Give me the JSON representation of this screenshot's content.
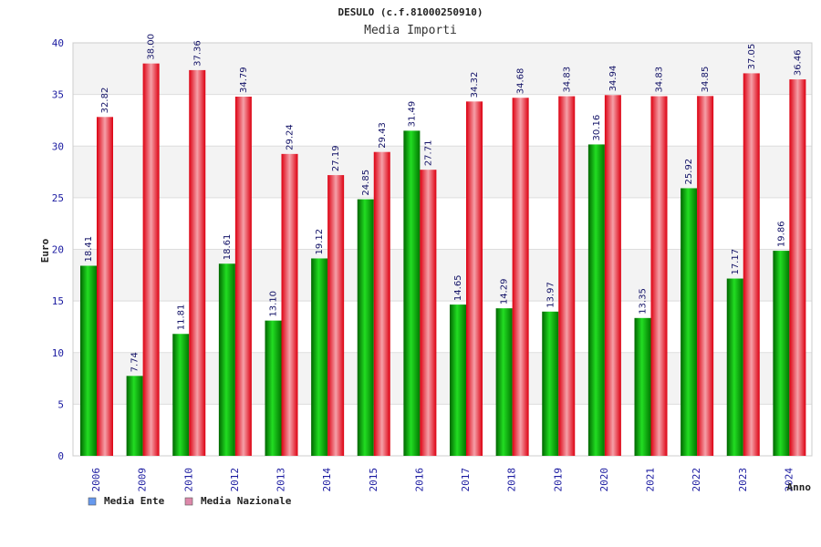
{
  "chart_data": {
    "type": "bar",
    "title": "DESULO (c.f.81000250910)",
    "subtitle": "Media Importi",
    "xlabel": "Anno",
    "ylabel": "Euro",
    "ylim": [
      0,
      40
    ],
    "yticks": [
      "0",
      "5",
      "10",
      "15",
      "20",
      "25",
      "30",
      "35",
      "40"
    ],
    "grid": true,
    "legend_position": "bottom-left",
    "categories": [
      "2006",
      "2009",
      "2010",
      "2012",
      "2013",
      "2014",
      "2015",
      "2016",
      "2017",
      "2018",
      "2019",
      "2020",
      "2021",
      "2022",
      "2023",
      "2024"
    ],
    "series": [
      {
        "name": "Media Ente",
        "legend_color": "#6699ee",
        "bar_color": "#00bb00",
        "values": [
          18.41,
          7.74,
          11.81,
          18.61,
          13.1,
          19.12,
          24.85,
          31.49,
          14.65,
          14.29,
          13.97,
          30.16,
          13.35,
          25.92,
          17.17,
          19.86
        ],
        "labels": [
          "18.41",
          "7.74",
          "11.81",
          "18.61",
          "13.10",
          "19.12",
          "24.85",
          "31.49",
          "14.65",
          "14.29",
          "13.97",
          "30.16",
          "13.35",
          "25.92",
          "17.17",
          "19.86"
        ]
      },
      {
        "name": "Media Nazionale",
        "legend_color": "#dd88aa",
        "bar_color": "#ee2233",
        "values": [
          32.82,
          38.0,
          37.36,
          34.79,
          29.24,
          27.19,
          29.43,
          27.71,
          34.32,
          34.68,
          34.83,
          34.94,
          34.83,
          34.85,
          37.05,
          36.46
        ],
        "labels": [
          "32.82",
          "38.00",
          "37.36",
          "34.79",
          "29.24",
          "27.19",
          "29.43",
          "27.71",
          "34.32",
          "34.68",
          "34.83",
          "34.94",
          "34.83",
          "34.85",
          "37.05",
          "36.46"
        ]
      }
    ]
  }
}
